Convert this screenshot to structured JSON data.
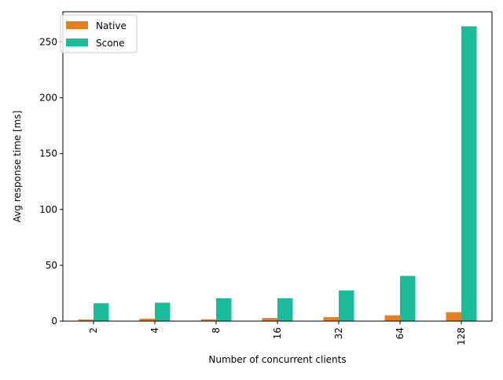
{
  "chart_data": {
    "type": "bar",
    "title": "",
    "xlabel": "Number of concurrent clients",
    "ylabel": "Avg response time [ms]",
    "categories": [
      "2",
      "4",
      "8",
      "16",
      "32",
      "64",
      "128"
    ],
    "series": [
      {
        "name": "Native",
        "color": "#e67e22",
        "values": [
          1.5,
          2.2,
          1.6,
          2.8,
          3.6,
          5.2,
          8.0
        ]
      },
      {
        "name": "Scone",
        "color": "#1abc9c",
        "values": [
          16.0,
          16.5,
          20.5,
          20.5,
          27.5,
          40.5,
          264.0
        ]
      }
    ],
    "ylim": [
      0,
      277
    ],
    "yticks": [
      "0",
      "50",
      "100",
      "150",
      "200",
      "250"
    ],
    "legend_position": "top-left",
    "grid": false
  }
}
